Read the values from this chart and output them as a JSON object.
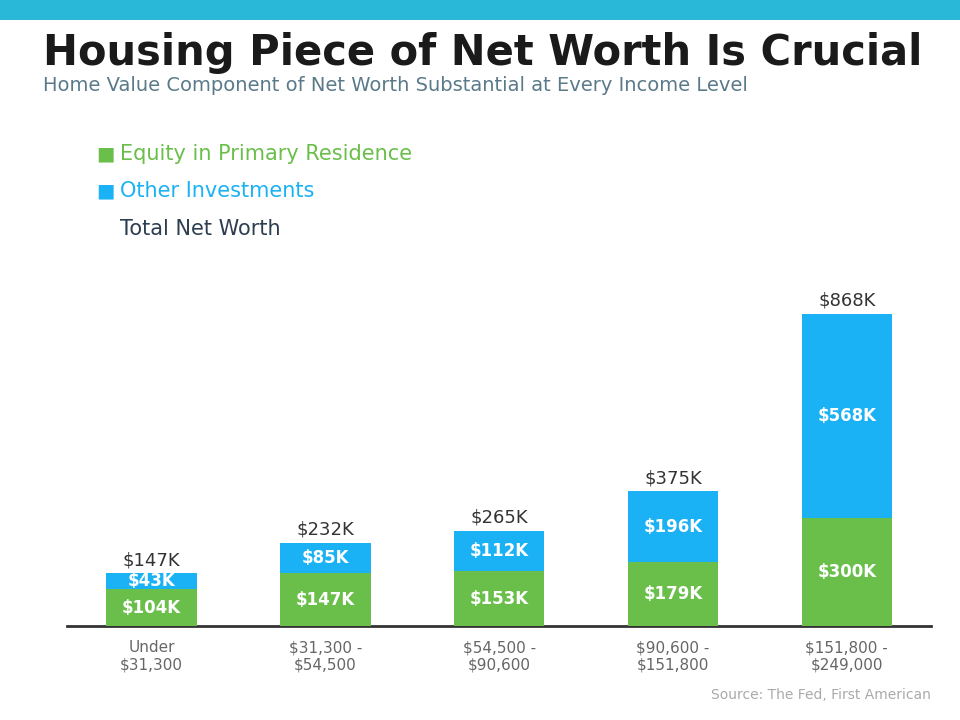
{
  "title": "Housing Piece of Net Worth Is Crucial",
  "subtitle": "Home Value Component of Net Worth Substantial at Every Income Level",
  "categories": [
    "Under\n$31,300",
    "$31,300 -\n$54,500",
    "$54,500 -\n$90,600",
    "$90,600 -\n$151,800",
    "$151,800 -\n$249,000"
  ],
  "equity": [
    104,
    147,
    153,
    179,
    300
  ],
  "other": [
    43,
    85,
    112,
    196,
    568
  ],
  "equity_labels": [
    "$104K",
    "$147K",
    "$153K",
    "$179K",
    "$300K"
  ],
  "other_labels": [
    "$43K",
    "$85K",
    "$112K",
    "$196K",
    "$568K"
  ],
  "total_labels": [
    "$147K",
    "$232K",
    "$265K",
    "$375K",
    "$868K"
  ],
  "equity_color": "#6abf4b",
  "other_color": "#1ab2f5",
  "background_color": "#ffffff",
  "legend_equity_color": "#6abf4b",
  "legend_other_color": "#1ab2f5",
  "legend_equity_text": "Equity in Primary Residence",
  "legend_other_text": "Other Investments",
  "legend_total_text": "Total Net Worth",
  "source_text": "Source: The Fed, First American",
  "title_fontsize": 30,
  "subtitle_fontsize": 14,
  "label_fontsize": 12,
  "total_label_fontsize": 13,
  "tick_fontsize": 11,
  "top_accent_color": "#29b8d8",
  "ylim": [
    0,
    1000
  ],
  "bar_width": 0.52
}
